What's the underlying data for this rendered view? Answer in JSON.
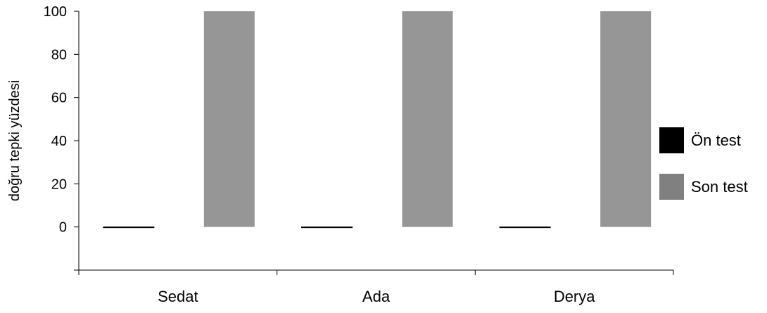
{
  "chart_data": {
    "type": "bar",
    "title": "",
    "xlabel": "",
    "ylabel": "doğru tepki yüzdesi",
    "categories": [
      "Sedat",
      "Ada",
      "Derya"
    ],
    "series": [
      {
        "name": "Ön test",
        "values": [
          0,
          0,
          0
        ],
        "color": "#000000"
      },
      {
        "name": "Son test",
        "values": [
          100,
          100,
          100
        ],
        "color": "#969696"
      }
    ],
    "ylim": [
      -20,
      100
    ],
    "yticks": [
      0,
      20,
      40,
      60,
      80,
      100
    ],
    "grid": false,
    "legend_position": "right"
  }
}
